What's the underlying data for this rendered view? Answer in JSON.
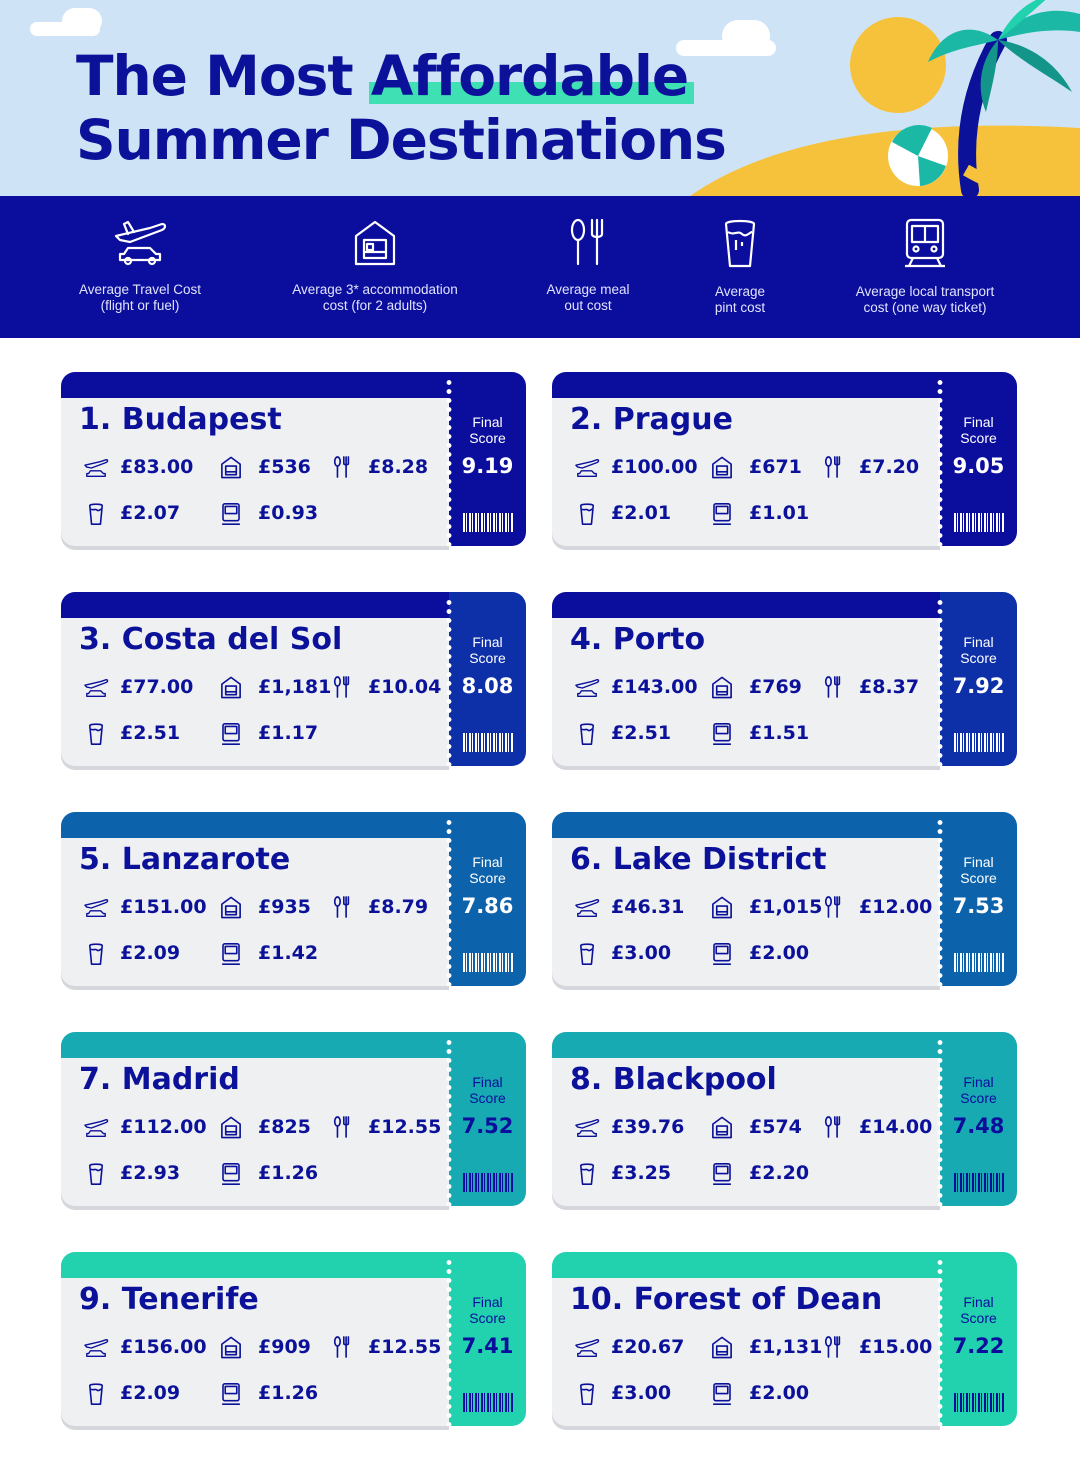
{
  "title": {
    "line1_prefix": "The Most ",
    "line1_highlight": "Affordable",
    "line2": "Summer Destinations"
  },
  "legend": [
    {
      "icon": "plane-car-icon",
      "label": "Average Travel Cost\n(flight or fuel)"
    },
    {
      "icon": "hotel-icon",
      "label": "Average 3* accommodation\ncost (for 2 adults)"
    },
    {
      "icon": "cutlery-icon",
      "label": "Average meal\nout cost"
    },
    {
      "icon": "pint-icon",
      "label": "Average\npint cost"
    },
    {
      "icon": "train-icon",
      "label": "Average local transport\ncost (one way ticket)"
    }
  ],
  "final_score_label": "Final\nScore",
  "colors": {
    "navy": "#0b0d9c",
    "royal": "#0d2fa8",
    "steel": "#0c63ab",
    "teal": "#17aab2",
    "mint": "#22d1ae"
  },
  "destinations": [
    {
      "name": "1. Budapest",
      "travel": "£83.00",
      "accommodation": "£536",
      "meal": "£8.28",
      "pint": "£2.07",
      "transport": "£0.93",
      "score": "9.19"
    },
    {
      "name": "2. Prague",
      "travel": "£100.00",
      "accommodation": "£671",
      "meal": "£7.20",
      "pint": "£2.01",
      "transport": "£1.01",
      "score": "9.05"
    },
    {
      "name": "3. Costa del Sol",
      "travel": "£77.00",
      "accommodation": "£1,181",
      "meal": "£10.04",
      "pint": "£2.51",
      "transport": "£1.17",
      "score": "8.08"
    },
    {
      "name": "4. Porto",
      "travel": "£143.00",
      "accommodation": "£769",
      "meal": "£8.37",
      "pint": "£2.51",
      "transport": "£1.51",
      "score": "7.92"
    },
    {
      "name": "5. Lanzarote",
      "travel": "£151.00",
      "accommodation": "£935",
      "meal": "£8.79",
      "pint": "£2.09",
      "transport": "£1.42",
      "score": "7.86"
    },
    {
      "name": "6. Lake District",
      "travel": "£46.31",
      "accommodation": "£1,015",
      "meal": "£12.00",
      "pint": "£3.00",
      "transport": "£2.00",
      "score": "7.53"
    },
    {
      "name": "7. Madrid",
      "travel": "£112.00",
      "accommodation": "£825",
      "meal": "£12.55",
      "pint": "£2.93",
      "transport": "£1.26",
      "score": "7.52"
    },
    {
      "name": "8. Blackpool",
      "travel": "£39.76",
      "accommodation": "£574",
      "meal": "£14.00",
      "pint": "£3.25",
      "transport": "£2.20",
      "score": "7.48"
    },
    {
      "name": "9. Tenerife",
      "travel": "£156.00",
      "accommodation": "£909",
      "meal": "£12.55",
      "pint": "£2.09",
      "transport": "£1.26",
      "score": "7.41"
    },
    {
      "name": "10. Forest of Dean",
      "travel": "£20.67",
      "accommodation": "£1,131",
      "meal": "£15.00",
      "pint": "£3.00",
      "transport": "£2.00",
      "score": "7.22"
    }
  ]
}
